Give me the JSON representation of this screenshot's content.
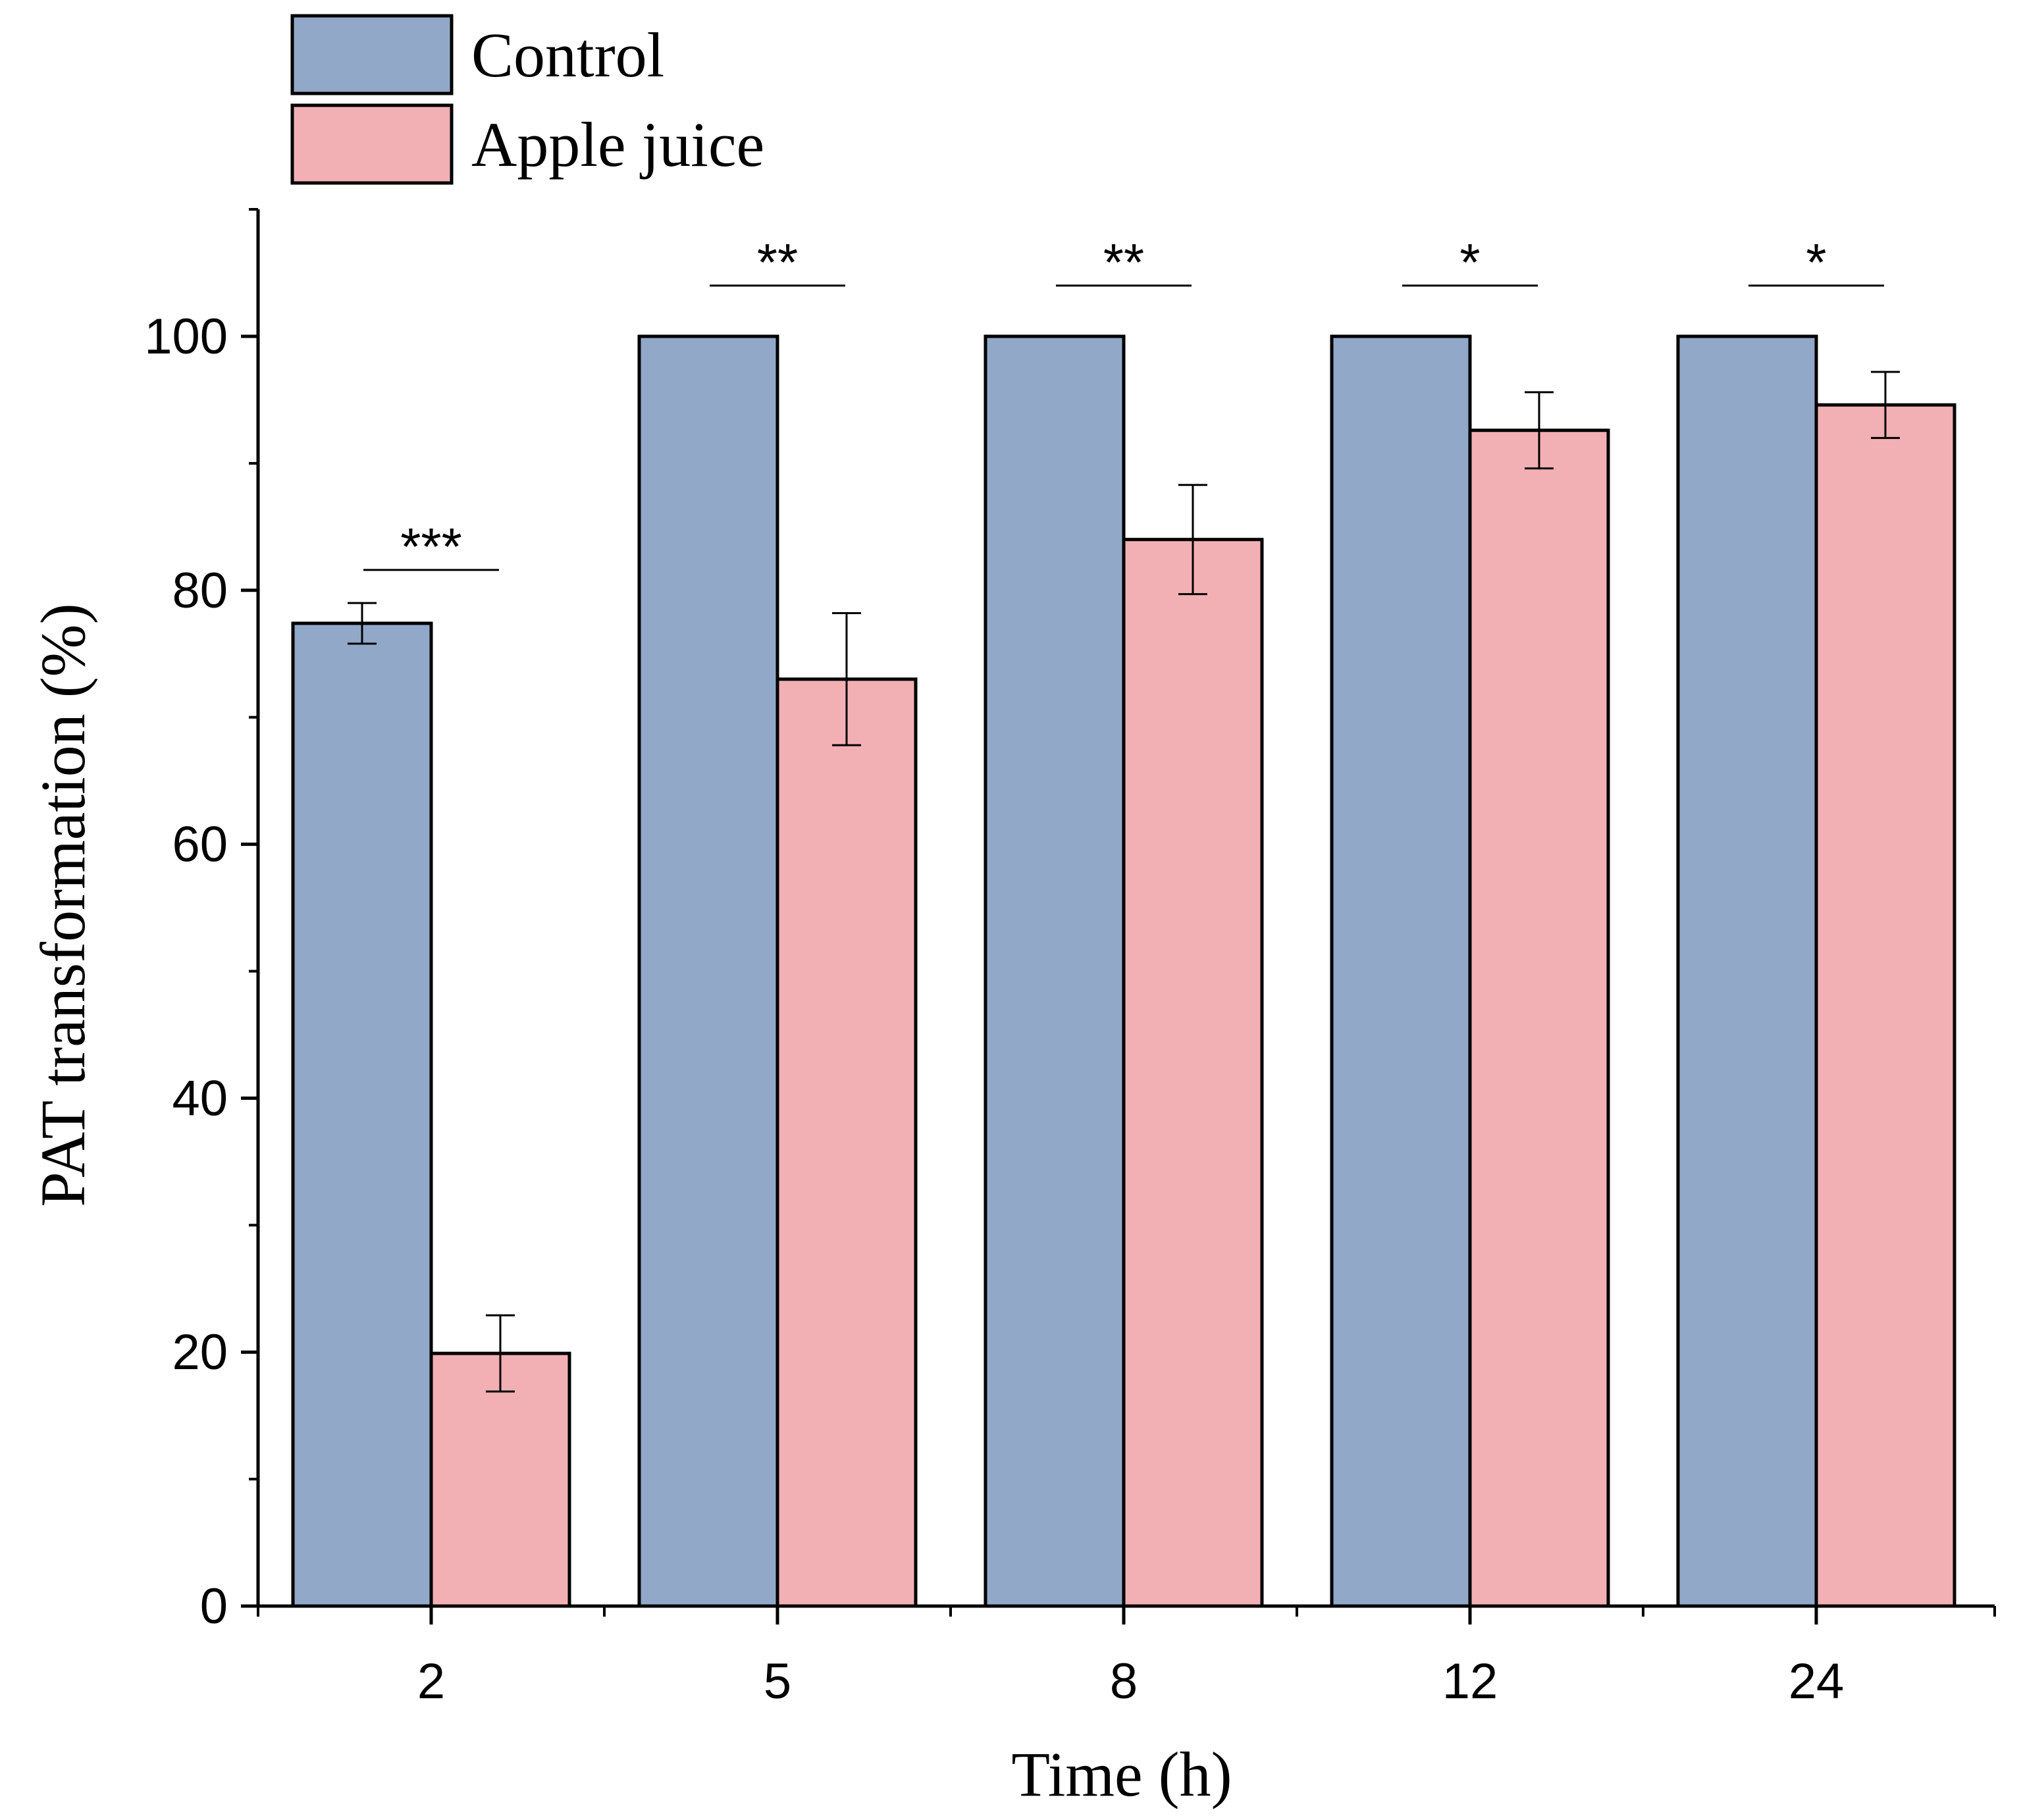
{
  "chart_data": {
    "type": "bar",
    "title": "",
    "xlabel": "Time (h)",
    "ylabel": "PAT transformation (%)",
    "categories": [
      "2",
      "5",
      "8",
      "12",
      "24"
    ],
    "ylim": [
      0,
      110
    ],
    "yticks": [
      0,
      20,
      40,
      60,
      80,
      100
    ],
    "y_minor_step": 10,
    "grid": false,
    "legend_position": "top-left",
    "series": [
      {
        "name": "Control",
        "color": "#92a8c9",
        "values": [
          77.4,
          100,
          100,
          100,
          100
        ],
        "errors": [
          1.6,
          0,
          0,
          0,
          0
        ]
      },
      {
        "name": "Apple juice",
        "color": "#f2b0b5",
        "values": [
          19.9,
          73.0,
          84.0,
          92.6,
          94.6
        ],
        "errors": [
          3.0,
          5.2,
          4.3,
          3.0,
          2.6
        ]
      }
    ],
    "significance": [
      "***",
      "**",
      "**",
      "*",
      "*"
    ],
    "significance_levels": [
      81.6,
      104.0,
      104.0,
      104.0,
      104.0
    ]
  }
}
